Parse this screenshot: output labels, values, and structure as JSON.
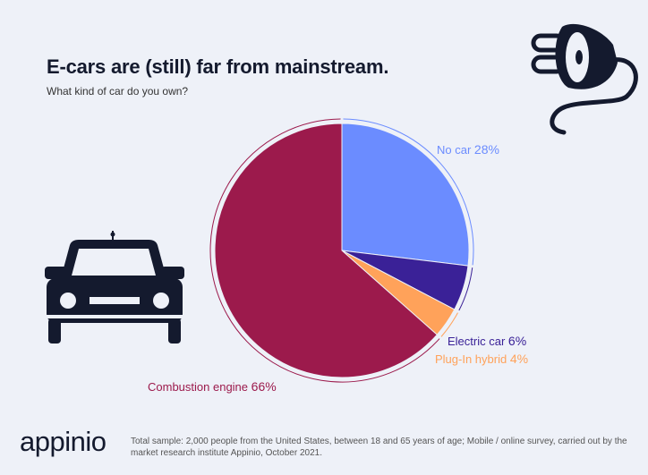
{
  "header": {
    "title": "E-cars are (still) far from mainstream.",
    "subtitle": "What kind of car do you own?"
  },
  "chart_data": {
    "type": "pie",
    "title": "E-cars are (still) far from mainstream.",
    "subtitle": "What kind of car do you own?",
    "slices": [
      {
        "label": "No car",
        "value": 28,
        "value_label": "28%",
        "color": "#6b8cff"
      },
      {
        "label": "Electric car",
        "value": 6,
        "value_label": "6%",
        "color": "#3a2197"
      },
      {
        "label": "Plug-In hybrid",
        "value": 4,
        "value_label": "4%",
        "color": "#ffa25a"
      },
      {
        "label": "Combustion engine",
        "value": 66,
        "value_label": "66%",
        "color": "#9c1a4c"
      }
    ],
    "start_angle_deg": 0,
    "direction": "clockwise"
  },
  "icons": [
    "plug-icon",
    "car-icon"
  ],
  "footer": {
    "logo": "appinio",
    "note": "Total sample: 2,000 people from the United States, between 18 and 65 years of age; Mobile / online survey, carried out by the market research institute Appinio, October 2021."
  }
}
